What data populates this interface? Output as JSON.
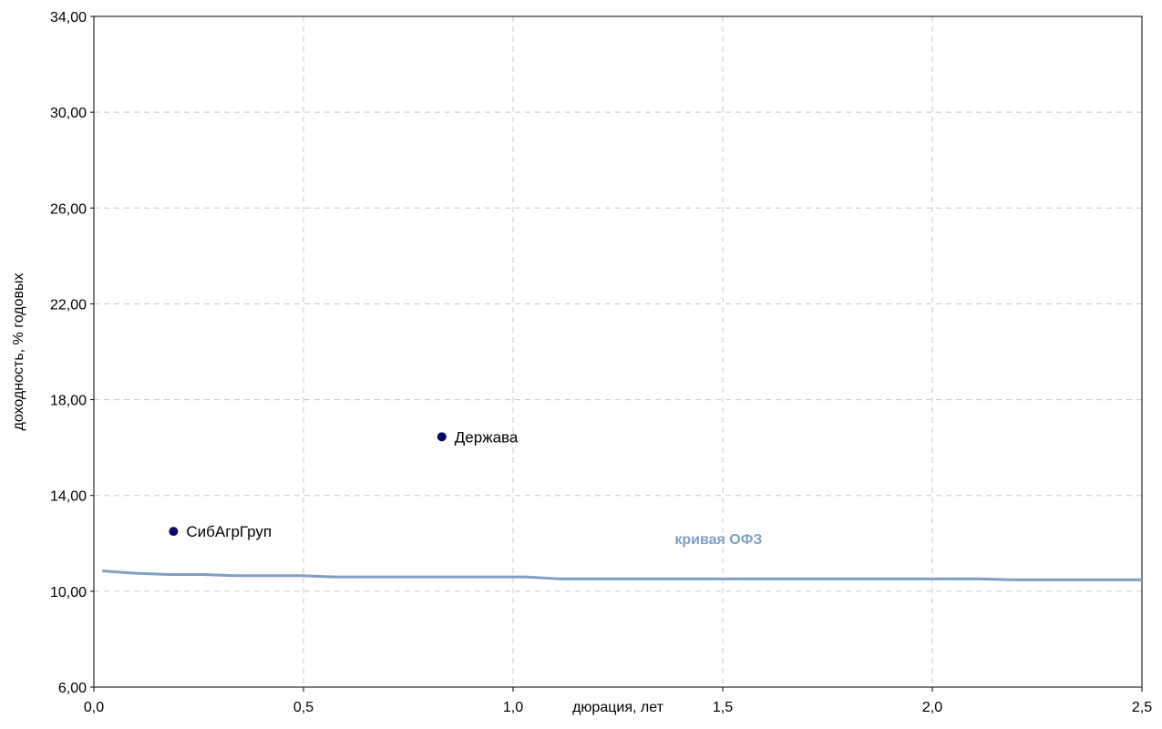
{
  "chart_data": {
    "type": "scatter",
    "title": "",
    "xlabel": "дюрация, лет",
    "ylabel": "доходность, % годовых",
    "xlim": [
      0,
      2.5
    ],
    "ylim": [
      6,
      34
    ],
    "x_ticks": [
      {
        "value": 0,
        "label": "0,0"
      },
      {
        "value": 0.5,
        "label": "0,5"
      },
      {
        "value": 1.0,
        "label": "1,0"
      },
      {
        "value": 1.5,
        "label": "1,5"
      },
      {
        "value": 2.0,
        "label": "2,0"
      },
      {
        "value": 2.5,
        "label": "2,5"
      }
    ],
    "y_ticks": [
      {
        "value": 6,
        "label": "6,00"
      },
      {
        "value": 10,
        "label": "10,00"
      },
      {
        "value": 14,
        "label": "14,00"
      },
      {
        "value": 18,
        "label": "18,00"
      },
      {
        "value": 22,
        "label": "22,00"
      },
      {
        "value": 26,
        "label": "26,00"
      },
      {
        "value": 30,
        "label": "30,00"
      },
      {
        "value": 34,
        "label": "34,00"
      }
    ],
    "grid": true,
    "points": [
      {
        "label": "СибАгрГруп",
        "x": 0.19,
        "y": 12.5
      },
      {
        "label": "Держава",
        "x": 0.83,
        "y": 16.45
      }
    ],
    "curve": {
      "name": "кривая ОФЗ",
      "color": "#7f9fc4",
      "x": [
        0.02,
        0.1,
        0.18,
        0.26,
        0.34,
        0.5,
        0.57,
        0.8,
        1.03,
        1.11,
        1.5,
        2.11,
        2.19,
        2.5
      ],
      "y": [
        10.85,
        10.75,
        10.7,
        10.7,
        10.65,
        10.65,
        10.6,
        10.6,
        10.6,
        10.52,
        10.52,
        10.52,
        10.48,
        10.48
      ]
    },
    "curve_label_position": {
      "x": 1.49,
      "y": 12.2
    },
    "point_color": "#0a0a6b"
  }
}
